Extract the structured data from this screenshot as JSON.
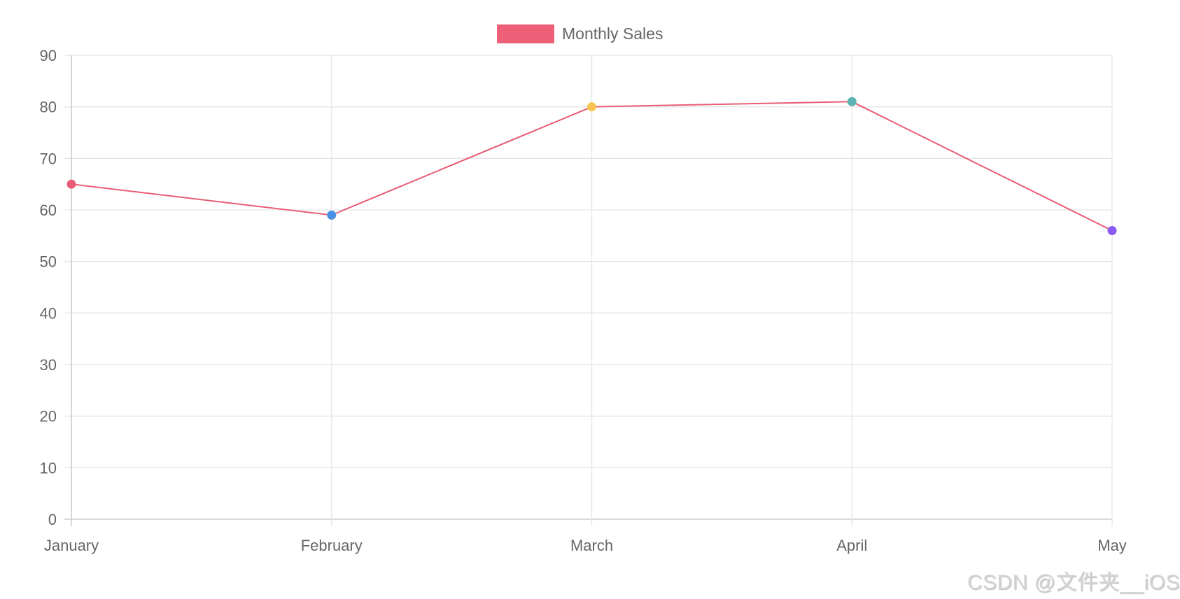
{
  "legend": {
    "label": "Monthly Sales",
    "color": "#ed6078"
  },
  "watermark": "CSDN @文件夹__iOS",
  "chart_data": {
    "type": "line",
    "title": "",
    "xlabel": "",
    "ylabel": "",
    "categories": [
      "January",
      "February",
      "March",
      "April",
      "May"
    ],
    "series": [
      {
        "name": "Monthly Sales",
        "values": [
          65,
          59,
          80,
          81,
          56
        ],
        "line_color": "#e85d75",
        "point_colors": [
          "#e85d75",
          "#4a90e2",
          "#f8c555",
          "#5bb3b3",
          "#8a5cf5"
        ]
      }
    ],
    "ylim": [
      0,
      90
    ],
    "yticks": [
      0,
      10,
      20,
      30,
      40,
      50,
      60,
      70,
      80,
      90
    ],
    "grid": true,
    "legend_position": "top"
  }
}
